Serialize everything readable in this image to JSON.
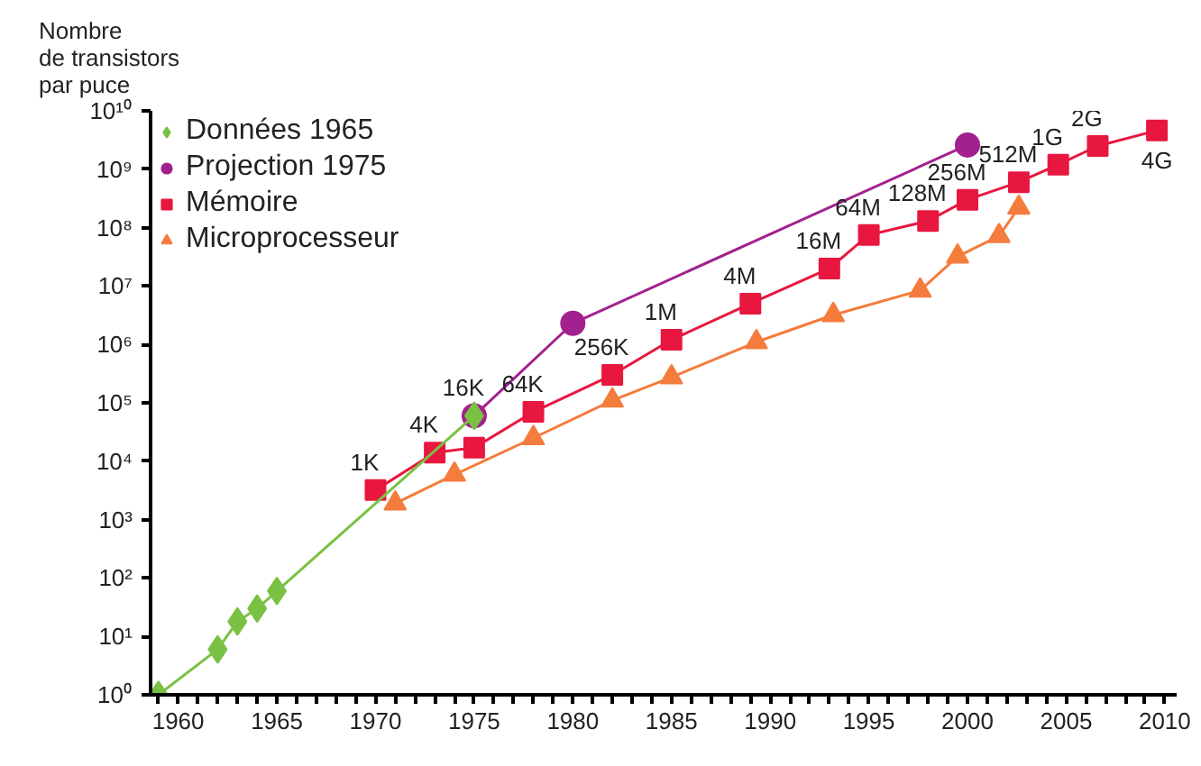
{
  "chart_data": {
    "type": "line",
    "ylabel": "Nombre\nde transistors\npar puce",
    "log": "y",
    "grid": false,
    "legend": "top left",
    "xlim": [
      1958.6,
      2010.6
    ],
    "annotations": [
      {
        "text": "1K",
        "x": 1970,
        "y": 3200
      },
      {
        "text": "4K",
        "x": 1973,
        "y": 14000
      },
      {
        "text": "16K",
        "x": 1975,
        "y": 60000
      },
      {
        "text": "64K",
        "x": 1978,
        "y": 70000
      },
      {
        "text": "256K",
        "x": 1982,
        "y": 300000
      },
      {
        "text": "1M",
        "x": 1985,
        "y": 1200000
      },
      {
        "text": "4M",
        "x": 1989,
        "y": 5000000
      },
      {
        "text": "16M",
        "x": 1993,
        "y": 20000000
      },
      {
        "text": "64M",
        "x": 1995,
        "y": 75000000
      },
      {
        "text": "128M",
        "x": 1998,
        "y": 130000000
      },
      {
        "text": "256M",
        "x": 2000,
        "y": 300000000
      },
      {
        "text": "512M",
        "x": 2002.6,
        "y": 600000000
      },
      {
        "text": "1G",
        "x": 2004.6,
        "y": 1200000000
      },
      {
        "text": "2G",
        "x": 2006.6,
        "y": 2500000000
      },
      {
        "text": "4G",
        "x": 2009.6,
        "y": 4600000000
      }
    ],
    "ylim": [
      1,
      10000000000
    ],
    "xticks": [
      {
        "value": 1959,
        "label": null
      },
      1960,
      {
        "value": 1961,
        "label": null
      },
      {
        "value": 1962,
        "label": null
      },
      {
        "value": 1963,
        "label": null
      },
      {
        "value": 1964,
        "label": null
      },
      1965,
      {
        "value": 1966,
        "label": null
      },
      {
        "value": 1967,
        "label": null
      },
      {
        "value": 1968,
        "label": null
      },
      {
        "value": 1969,
        "label": null
      },
      1970,
      {
        "value": 1971,
        "label": null
      },
      {
        "value": 1972,
        "label": null
      },
      {
        "value": 1973,
        "label": null
      },
      {
        "value": 1974,
        "label": null
      },
      1975,
      {
        "value": 1976,
        "label": null
      },
      {
        "value": 1977,
        "label": null
      },
      {
        "value": 1978,
        "label": null
      },
      {
        "value": 1979,
        "label": null
      },
      1980,
      {
        "value": 1981,
        "label": null
      },
      {
        "value": 1982,
        "label": null
      },
      {
        "value": 1983,
        "label": null
      },
      {
        "value": 1984,
        "label": null
      },
      1985,
      {
        "value": 1986,
        "label": null
      },
      {
        "value": 1987,
        "label": null
      },
      {
        "value": 1988,
        "label": null
      },
      {
        "value": 1989,
        "label": null
      },
      1990,
      {
        "value": 1991,
        "label": null
      },
      {
        "value": 1992,
        "label": null
      },
      {
        "value": 1993,
        "label": null
      },
      {
        "value": 1994,
        "label": null
      },
      1995,
      {
        "value": 1996,
        "label": null
      },
      {
        "value": 1997,
        "label": null
      },
      {
        "value": 1998,
        "label": null
      },
      {
        "value": 1999,
        "label": null
      },
      2000,
      {
        "value": 2001,
        "label": null
      },
      {
        "value": 2002,
        "label": null
      },
      {
        "value": 2003,
        "label": null
      },
      {
        "value": 2004,
        "label": null
      },
      2005,
      {
        "value": 2006,
        "label": null
      },
      {
        "value": 2007,
        "label": null
      },
      {
        "value": 2008,
        "label": null
      },
      {
        "value": 2009,
        "label": null
      },
      2010
    ],
    "yticks": [
      {
        "value": 1,
        "label": "10⁰"
      },
      {
        "value": 10,
        "label": "10¹"
      },
      {
        "value": 100,
        "label": "10²"
      },
      {
        "value": 1000,
        "label": "10³"
      },
      {
        "value": 10000,
        "label": "10⁴"
      },
      {
        "value": 100000,
        "label": "10⁵"
      },
      {
        "value": 1000000,
        "label": "10⁶"
      },
      {
        "value": 10000000,
        "label": "10⁷"
      },
      {
        "value": 100000000,
        "label": "10⁸"
      },
      {
        "value": 1000000000,
        "label": "10⁹"
      },
      {
        "value": 10000000000,
        "label": "10¹⁰"
      }
    ],
    "series": [
      {
        "name": "Données 1965",
        "color": "#7ac143",
        "marker": "diamond",
        "x": [
          1959,
          1962,
          1963,
          1964,
          1965,
          1975
        ],
        "values": [
          1,
          6,
          18,
          30,
          60,
          60000
        ]
      },
      {
        "name": "Projection 1975",
        "color": "#a3218e",
        "marker": "circle",
        "x": [
          1975,
          1980,
          2000
        ],
        "values": [
          60000,
          2300000,
          2600000000
        ]
      },
      {
        "name": "Mémoire",
        "color": "#e8173f",
        "marker": "square",
        "x": [
          1970,
          1973,
          1975,
          1978,
          1982,
          1985,
          1989,
          1993,
          1995,
          1998,
          2000,
          2002.6,
          2004.6,
          2006.6,
          2009.6
        ],
        "values": [
          3200,
          14000,
          17000,
          70000,
          300000,
          1200000,
          5000000,
          20000000,
          75000000,
          130000000,
          300000000,
          600000000,
          1200000000,
          2500000000,
          4600000000
        ]
      },
      {
        "name": "Microprocesseur",
        "color": "#f47c3c",
        "marker": "triangle",
        "x": [
          1971,
          1974,
          1978,
          1982,
          1985,
          1989.3,
          1993.2,
          1997.6,
          1999.5,
          2001.6,
          2002.6
        ],
        "values": [
          1900,
          5900,
          25000,
          110000,
          275000,
          1100000,
          3200000,
          8400000,
          32000000,
          72000000,
          220000000
        ]
      }
    ]
  }
}
